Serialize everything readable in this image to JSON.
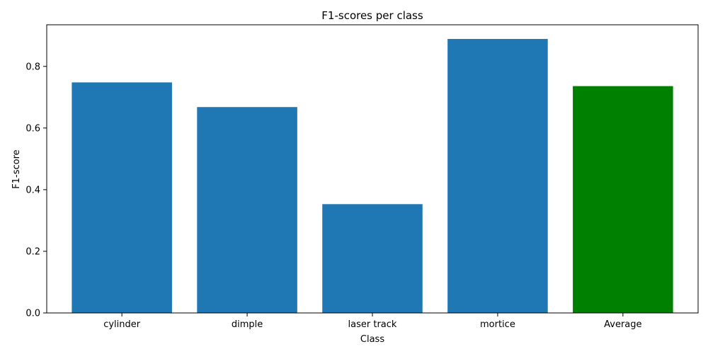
{
  "chart_data": {
    "type": "bar",
    "title": "F1-scores per class",
    "xlabel": "Class",
    "ylabel": "F1-score",
    "categories": [
      "cylinder",
      "dimple",
      "laser track",
      "mortice",
      "Average"
    ],
    "values": [
      0.748,
      0.668,
      0.353,
      0.889,
      0.736
    ],
    "bar_colors": [
      "#1f77b4",
      "#1f77b4",
      "#1f77b4",
      "#1f77b4",
      "#008000"
    ],
    "ylim": [
      0,
      0.935
    ],
    "yticks": [
      0.0,
      0.2,
      0.4,
      0.6,
      0.8
    ],
    "ytick_labels": [
      "0.0",
      "0.2",
      "0.4",
      "0.6",
      "0.8"
    ],
    "grid": false,
    "legend": "none"
  }
}
